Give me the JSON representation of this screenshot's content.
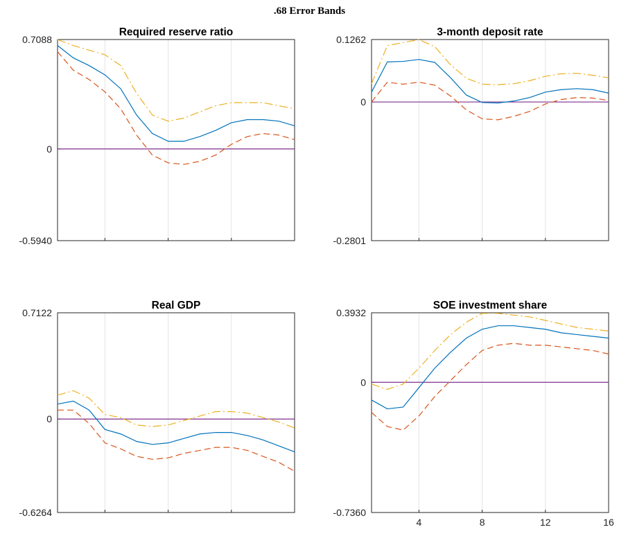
{
  "figure": {
    "suptitle": ".68 Error Bands"
  },
  "chart_data": [
    {
      "type": "line",
      "title": "Required reserve ratio",
      "x": [
        1,
        2,
        3,
        4,
        5,
        6,
        7,
        8,
        9,
        10,
        11,
        12,
        13,
        14,
        15,
        16
      ],
      "ylim": [
        -0.594,
        0.7088
      ],
      "ytick_labels": [
        "0.7088",
        "0",
        "-0.5940"
      ],
      "xtick_labels": [],
      "grid": "vertical",
      "series": [
        {
          "role": "upper",
          "color": "#EDB120",
          "dash": "dashdot",
          "values": [
            0.71,
            0.67,
            0.64,
            0.61,
            0.54,
            0.36,
            0.22,
            0.18,
            0.2,
            0.24,
            0.28,
            0.3,
            0.3,
            0.3,
            0.28,
            0.26
          ]
        },
        {
          "role": "median",
          "color": "#0072BD",
          "dash": "solid",
          "values": [
            0.67,
            0.59,
            0.54,
            0.48,
            0.39,
            0.22,
            0.1,
            0.05,
            0.05,
            0.08,
            0.12,
            0.17,
            0.19,
            0.19,
            0.18,
            0.15
          ]
        },
        {
          "role": "lower",
          "color": "#D95319",
          "dash": "dashed",
          "values": [
            0.63,
            0.51,
            0.45,
            0.37,
            0.26,
            0.09,
            -0.04,
            -0.09,
            -0.1,
            -0.08,
            -0.04,
            0.03,
            0.08,
            0.1,
            0.09,
            0.06
          ]
        },
        {
          "role": "zero",
          "color": "#7E2F8E",
          "dash": "solid",
          "values": [
            0,
            0,
            0,
            0,
            0,
            0,
            0,
            0,
            0,
            0,
            0,
            0,
            0,
            0,
            0,
            0
          ]
        }
      ]
    },
    {
      "type": "line",
      "title": "3-month deposit rate",
      "x": [
        1,
        2,
        3,
        4,
        5,
        6,
        7,
        8,
        9,
        10,
        11,
        12,
        13,
        14,
        15,
        16
      ],
      "ylim": [
        -0.2801,
        0.1262
      ],
      "ytick_labels": [
        "0.1262",
        "0",
        "-0.2801"
      ],
      "xtick_labels": [],
      "grid": "vertical",
      "series": [
        {
          "role": "upper",
          "color": "#EDB120",
          "dash": "dashdot",
          "values": [
            0.037,
            0.114,
            0.12,
            0.126,
            0.112,
            0.075,
            0.048,
            0.036,
            0.035,
            0.037,
            0.043,
            0.052,
            0.057,
            0.058,
            0.054,
            0.049
          ]
        },
        {
          "role": "median",
          "color": "#0072BD",
          "dash": "solid",
          "values": [
            0.02,
            0.081,
            0.082,
            0.086,
            0.08,
            0.049,
            0.014,
            -0.001,
            -0.002,
            0.002,
            0.009,
            0.02,
            0.025,
            0.027,
            0.025,
            0.018
          ]
        },
        {
          "role": "lower",
          "color": "#D95319",
          "dash": "dashed",
          "values": [
            0.0,
            0.04,
            0.036,
            0.04,
            0.034,
            0.012,
            -0.016,
            -0.034,
            -0.036,
            -0.029,
            -0.019,
            -0.004,
            0.005,
            0.009,
            0.008,
            0.003
          ]
        },
        {
          "role": "zero",
          "color": "#7E2F8E",
          "dash": "solid",
          "values": [
            0,
            0,
            0,
            0,
            0,
            0,
            0,
            0,
            0,
            0,
            0,
            0,
            0,
            0,
            0,
            0
          ]
        }
      ]
    },
    {
      "type": "line",
      "title": "Real GDP",
      "x": [
        1,
        2,
        3,
        4,
        5,
        6,
        7,
        8,
        9,
        10,
        11,
        12,
        13,
        14,
        15,
        16
      ],
      "ylim": [
        -0.6264,
        0.7122
      ],
      "ytick_labels": [
        "0.7122",
        "0",
        "-0.6264"
      ],
      "xtick_labels": [],
      "grid": "vertical",
      "series": [
        {
          "role": "upper",
          "color": "#EDB120",
          "dash": "dashdot",
          "values": [
            0.16,
            0.19,
            0.14,
            0.03,
            0.01,
            -0.04,
            -0.05,
            -0.04,
            -0.01,
            0.02,
            0.05,
            0.05,
            0.04,
            0.01,
            -0.02,
            -0.06
          ]
        },
        {
          "role": "median",
          "color": "#0072BD",
          "dash": "solid",
          "values": [
            0.1,
            0.12,
            0.06,
            -0.07,
            -0.1,
            -0.15,
            -0.17,
            -0.16,
            -0.13,
            -0.1,
            -0.09,
            -0.09,
            -0.11,
            -0.14,
            -0.18,
            -0.22
          ]
        },
        {
          "role": "lower",
          "color": "#D95319",
          "dash": "dashed",
          "values": [
            0.06,
            0.06,
            -0.03,
            -0.16,
            -0.2,
            -0.25,
            -0.27,
            -0.26,
            -0.23,
            -0.21,
            -0.19,
            -0.19,
            -0.21,
            -0.25,
            -0.29,
            -0.35
          ]
        },
        {
          "role": "zero",
          "color": "#7E2F8E",
          "dash": "solid",
          "values": [
            0,
            0,
            0,
            0,
            0,
            0,
            0,
            0,
            0,
            0,
            0,
            0,
            0,
            0,
            0,
            0
          ]
        }
      ]
    },
    {
      "type": "line",
      "title": "SOE investment share",
      "x": [
        1,
        2,
        3,
        4,
        5,
        6,
        7,
        8,
        9,
        10,
        11,
        12,
        13,
        14,
        15,
        16
      ],
      "ylim": [
        -0.736,
        0.3932
      ],
      "ytick_labels": [
        "0.3932",
        "0",
        "-0.7360"
      ],
      "xtick_labels": [
        "4",
        "8",
        "12",
        "16"
      ],
      "xticks": [
        4,
        8,
        12,
        16
      ],
      "grid": "vertical",
      "series": [
        {
          "role": "upper",
          "color": "#EDB120",
          "dash": "dashdot",
          "values": [
            -0.01,
            -0.04,
            -0.01,
            0.08,
            0.18,
            0.27,
            0.34,
            0.39,
            0.39,
            0.38,
            0.37,
            0.35,
            0.33,
            0.31,
            0.3,
            0.29
          ]
        },
        {
          "role": "median",
          "color": "#0072BD",
          "dash": "solid",
          "values": [
            -0.1,
            -0.15,
            -0.14,
            -0.03,
            0.08,
            0.17,
            0.25,
            0.3,
            0.32,
            0.32,
            0.31,
            0.3,
            0.28,
            0.27,
            0.26,
            0.25
          ]
        },
        {
          "role": "lower",
          "color": "#D95319",
          "dash": "dashed",
          "values": [
            -0.17,
            -0.25,
            -0.27,
            -0.19,
            -0.08,
            0.01,
            0.1,
            0.18,
            0.21,
            0.22,
            0.21,
            0.21,
            0.2,
            0.19,
            0.18,
            0.16
          ]
        },
        {
          "role": "zero",
          "color": "#7E2F8E",
          "dash": "solid",
          "values": [
            0,
            0,
            0,
            0,
            0,
            0,
            0,
            0,
            0,
            0,
            0,
            0,
            0,
            0,
            0,
            0
          ]
        }
      ]
    }
  ]
}
